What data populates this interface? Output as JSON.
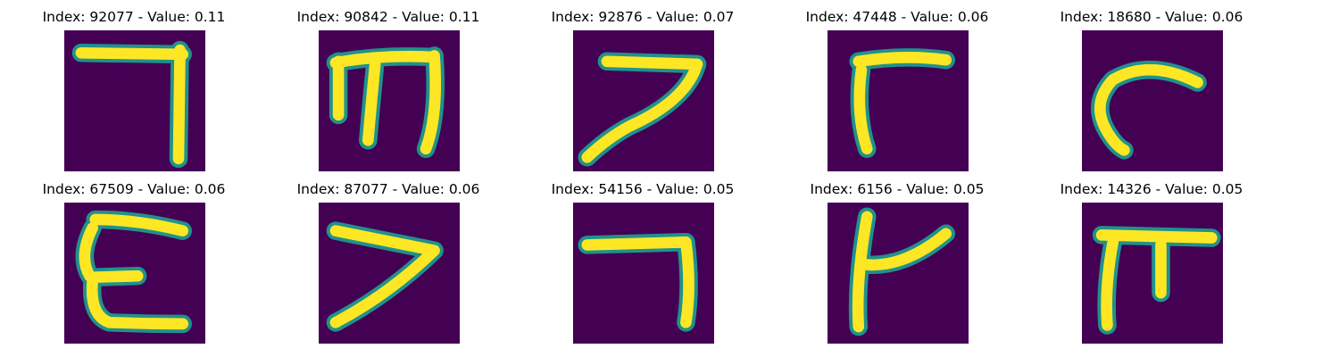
{
  "panels": [
    {
      "title": "Index: 92077 - Value: 0.11",
      "glyph": "seven-corner"
    },
    {
      "title": "Index: 90842 - Value: 0.11",
      "glyph": "m-shape"
    },
    {
      "title": "Index: 92876 - Value: 0.07",
      "glyph": "seven-slant"
    },
    {
      "title": "Index: 47448 - Value: 0.06",
      "glyph": "r-shape"
    },
    {
      "title": "Index: 18680 - Value: 0.06",
      "glyph": "c-hook"
    },
    {
      "title": "Index: 67509 - Value: 0.06",
      "glyph": "epsilon"
    },
    {
      "title": "Index: 87077 - Value: 0.06",
      "glyph": "seven-open"
    },
    {
      "title": "Index: 54156 - Value: 0.05",
      "glyph": "seven-hook"
    },
    {
      "title": "Index: 6156 - Value: 0.05",
      "glyph": "k-shape"
    },
    {
      "title": "Index: 14326 - Value: 0.05",
      "glyph": "pi-shape"
    }
  ],
  "colors": {
    "background": "#440154",
    "edge": "#21918c",
    "stroke": "#fde725"
  }
}
